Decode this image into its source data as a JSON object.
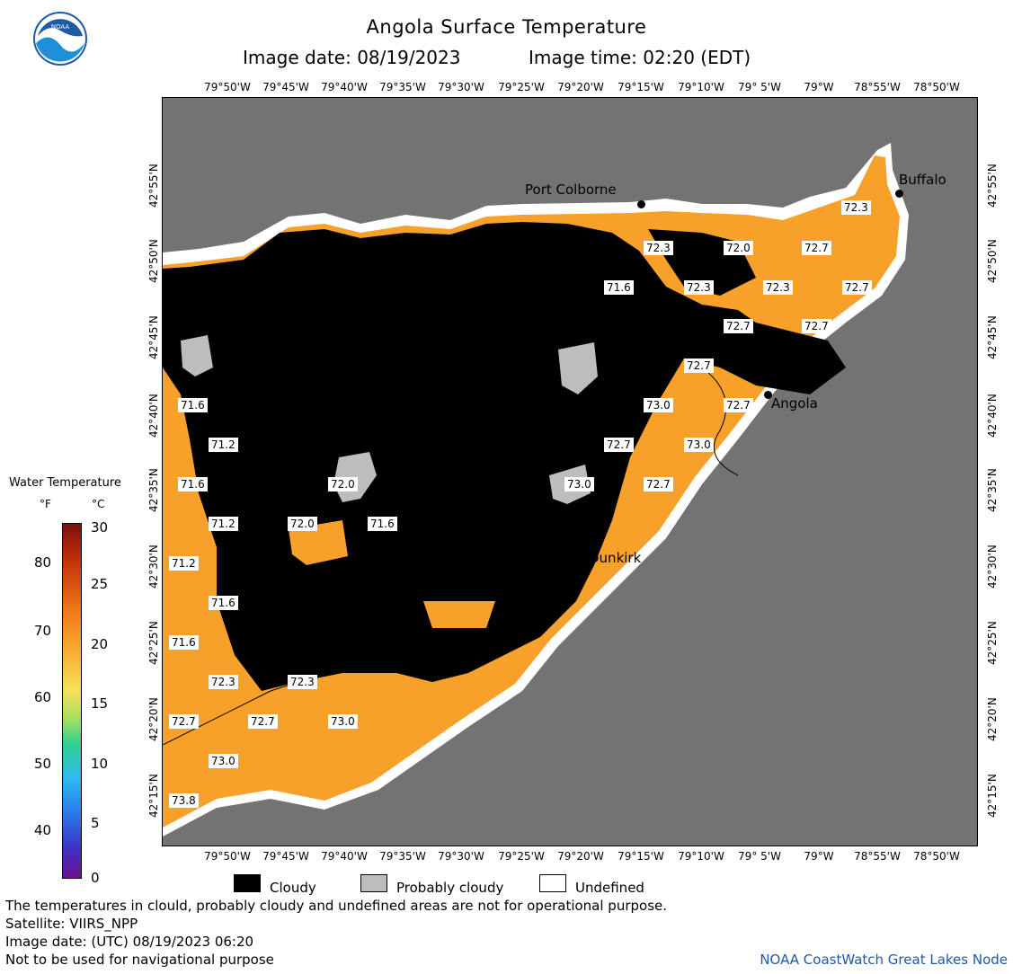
{
  "header": {
    "title": "Angola Surface Temperature",
    "image_date_label": "Image date: 08/19/2023",
    "image_time_label": "Image time: 02:20 (EDT)"
  },
  "axes": {
    "lon_labels": [
      "79°50'W",
      "79°45'W",
      "79°40'W",
      "79°35'W",
      "79°30'W",
      "79°25'W",
      "79°20'W",
      "79°15'W",
      "79°10'W",
      "79° 5'W",
      "79°W",
      "78°55'W",
      "78°50'W"
    ],
    "lat_labels": [
      "42°55'N",
      "42°50'N",
      "42°45'N",
      "42°40'N",
      "42°35'N",
      "42°30'N",
      "42°25'N",
      "42°20'N",
      "42°15'N"
    ]
  },
  "map": {
    "cities": [
      {
        "name": "Port Colborne"
      },
      {
        "name": "Buffalo"
      },
      {
        "name": "Angola"
      },
      {
        "name": "Dunkirk"
      }
    ],
    "temperature_labels": [
      "72.3",
      "72.3",
      "72.0",
      "72.7",
      "71.6",
      "72.3",
      "72.3",
      "72.7",
      "72.7",
      "72.7",
      "72.7",
      "71.6",
      "73.0",
      "72.7",
      "71.2",
      "72.7",
      "73.0",
      "71.6",
      "72.0",
      "73.0",
      "72.7",
      "71.2",
      "72.0",
      "71.6",
      "71.2",
      "71.6",
      "71.6",
      "72.3",
      "72.3",
      "72.7",
      "72.7",
      "73.0",
      "73.0",
      "73.8"
    ],
    "colors": {
      "land": "#737373",
      "cloud": "#000000",
      "water": "#f7a02a",
      "probably_cloudy": "#bdbdbd",
      "undefined": "#ffffff"
    }
  },
  "colorbar": {
    "title": "Water Temperature",
    "unit_f": "°F",
    "unit_c": "°C",
    "f_ticks": [
      "80",
      "70",
      "60",
      "50",
      "40"
    ],
    "c_ticks": [
      "30",
      "25",
      "20",
      "15",
      "10",
      "5",
      "0"
    ]
  },
  "legend": {
    "items": [
      {
        "label": "Cloudy",
        "color": "#000000"
      },
      {
        "label": "Probably cloudy",
        "color": "#bdbdbd"
      },
      {
        "label": "Undefined",
        "color": "#ffffff"
      }
    ]
  },
  "footer": {
    "disclaimer": "The temperatures in clould, probably cloudy and undefined areas are not for operational purpose.",
    "satellite": "Satellite: VIIRS_NPP",
    "utc_date": "Image date: (UTC) 08/19/2023  06:20",
    "nav_warning": "Not to be used for navigational purpose",
    "credit": "NOAA CoastWatch Great Lakes Node"
  },
  "logo": {
    "text": "NOAA"
  }
}
